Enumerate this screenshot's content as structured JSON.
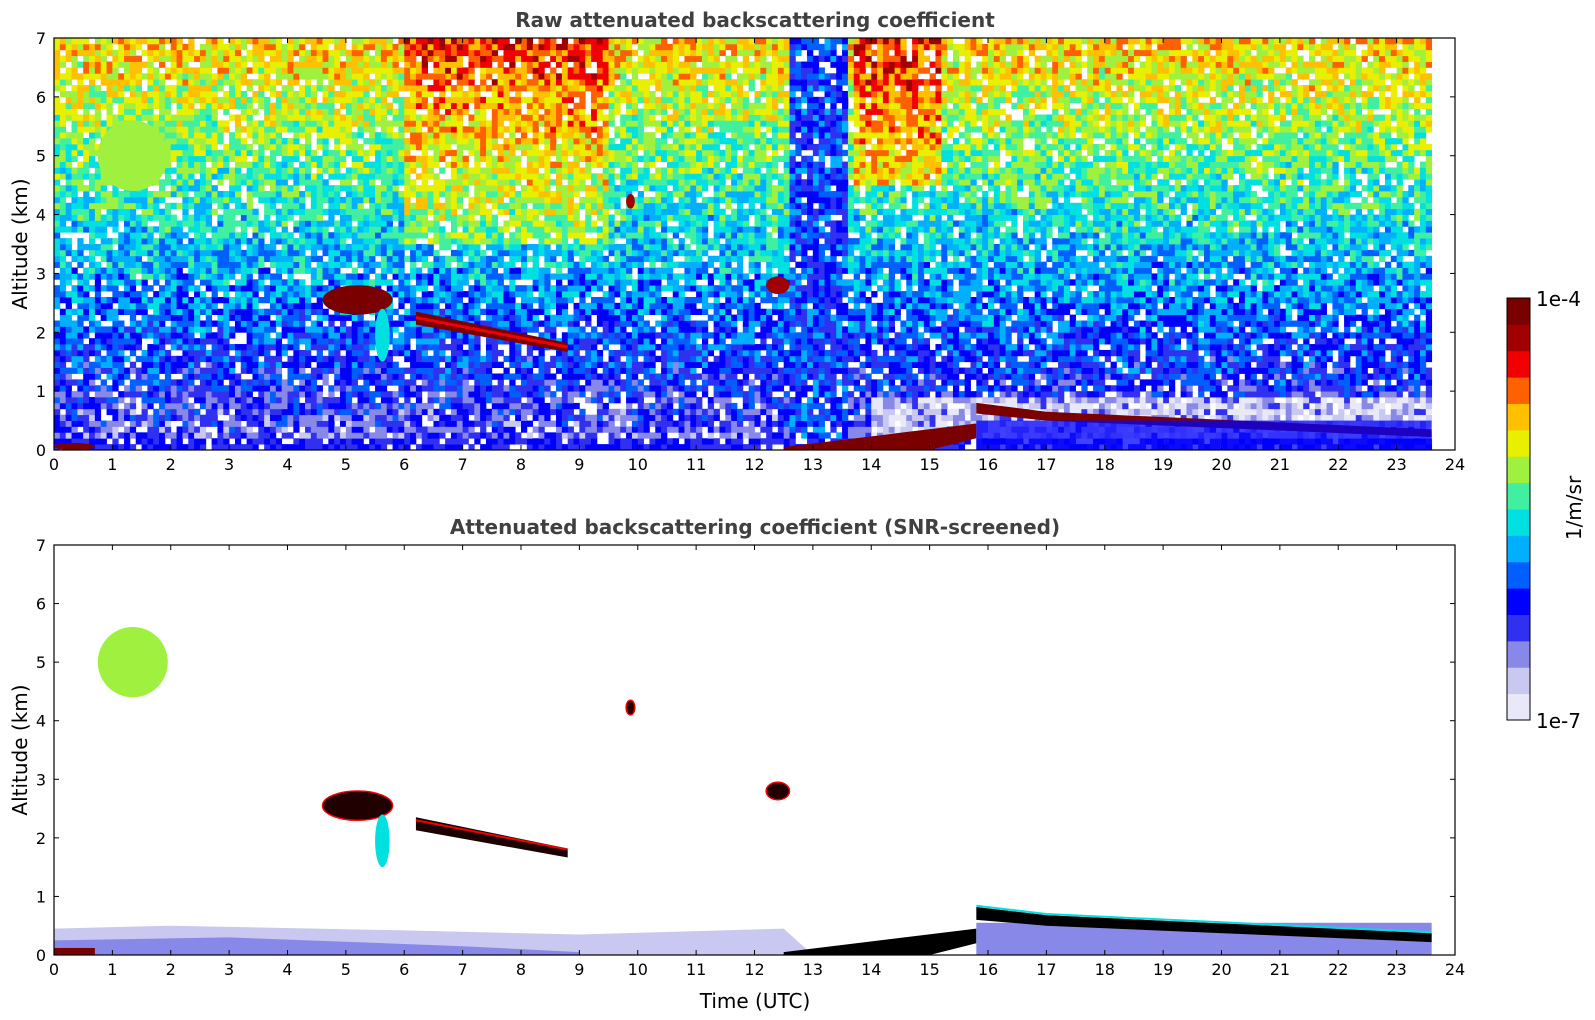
{
  "chart_data": [
    {
      "type": "heatmap",
      "title": "Raw attenuated backscattering coefficient",
      "xlabel": "",
      "ylabel": "Altitude (km)",
      "xlim": [
        0,
        24
      ],
      "ylim": [
        0,
        7
      ],
      "xticks": [
        "0",
        "1",
        "2",
        "3",
        "4",
        "5",
        "6",
        "7",
        "8",
        "9",
        "10",
        "11",
        "12",
        "13",
        "14",
        "15",
        "16",
        "17",
        "18",
        "19",
        "20",
        "21",
        "22",
        "23",
        "24"
      ],
      "yticks": [
        "0",
        "1",
        "2",
        "3",
        "4",
        "5",
        "6",
        "7"
      ],
      "data_end_hour": 23.6,
      "features": [
        {
          "name": "boundary layer / fog",
          "t": [
            0.0,
            0.7
          ],
          "alt": [
            0.0,
            0.12
          ],
          "level": 0.95
        },
        {
          "name": "mid-level cloud patch",
          "t": [
            0.75,
            1.95
          ],
          "alt": [
            4.4,
            5.6
          ],
          "level": 0.62
        },
        {
          "name": "cloud layer",
          "t": [
            4.6,
            5.8
          ],
          "alt": [
            2.3,
            2.8
          ],
          "level": 0.95
        },
        {
          "name": "virga",
          "t": [
            5.5,
            5.75
          ],
          "alt": [
            1.5,
            2.4
          ],
          "level": 0.45
        },
        {
          "name": "sloping cloud",
          "t": [
            6.2,
            8.8
          ],
          "alt": [
            1.65,
            2.3
          ],
          "level": 0.97
        },
        {
          "name": "small cloud",
          "t": [
            9.8,
            9.95
          ],
          "alt": [
            4.1,
            4.35
          ],
          "level": 0.9
        },
        {
          "name": "small cloud",
          "t": [
            12.2,
            12.6
          ],
          "alt": [
            2.65,
            2.95
          ],
          "level": 0.9
        },
        {
          "name": "rising aerosol layer",
          "t": [
            12.5,
            15.8
          ],
          "alt": [
            0.0,
            0.45
          ],
          "level": 0.95
        },
        {
          "name": "boundary-layer top",
          "t": [
            15.8,
            23.6
          ],
          "alt": [
            0.25,
            0.8
          ],
          "level": 0.97
        }
      ]
    },
    {
      "type": "heatmap",
      "title": "Attenuated backscattering coefficient (SNR-screened)",
      "xlabel": "Time (UTC)",
      "ylabel": "Altitude (km)",
      "xlim": [
        0,
        24
      ],
      "ylim": [
        0,
        7
      ],
      "xticks": [
        "0",
        "1",
        "2",
        "3",
        "4",
        "5",
        "6",
        "7",
        "8",
        "9",
        "10",
        "11",
        "12",
        "13",
        "14",
        "15",
        "16",
        "17",
        "18",
        "19",
        "20",
        "21",
        "22",
        "23",
        "24"
      ],
      "yticks": [
        "0",
        "1",
        "2",
        "3",
        "4",
        "5",
        "6",
        "7"
      ],
      "data_end_hour": 23.6
    }
  ],
  "colorbar": {
    "label": "1/m/sr",
    "max_label": "1e-4",
    "min_label": "1e-7",
    "colors": [
      "#e8e8f8",
      "#c8c8f0",
      "#8888e8",
      "#3030f0",
      "#0000ff",
      "#0060ff",
      "#00b0ff",
      "#00e0e0",
      "#40f0a0",
      "#a0f040",
      "#e8f000",
      "#ffc000",
      "#ff6000",
      "#f00000",
      "#a00000",
      "#7a0000"
    ]
  }
}
